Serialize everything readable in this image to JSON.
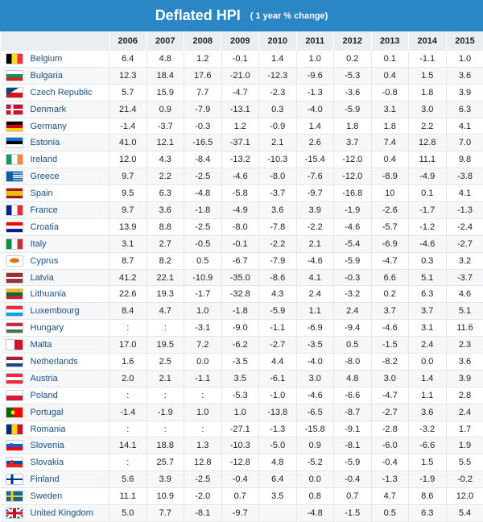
{
  "header": {
    "title": "Deflated HPI",
    "subtitle": "( 1 year % change)"
  },
  "columns": [
    "",
    "2006",
    "2007",
    "2008",
    "2009",
    "2010",
    "2011",
    "2012",
    "2013",
    "2014",
    "2015"
  ],
  "rows": [
    {
      "country": "Belgium",
      "flag": "belgium-flag-icon",
      "values": [
        "6.4",
        "4.8",
        "1.2",
        "-0.1",
        "1.4",
        "1.0",
        "0.2",
        "0.1",
        "-1.1",
        "1.0"
      ]
    },
    {
      "country": "Bulgaria",
      "flag": "bulgaria-flag-icon",
      "values": [
        "12.3",
        "18.4",
        "17.6",
        "-21.0",
        "-12.3",
        "-9.6",
        "-5.3",
        "0.4",
        "1.5",
        "3.6"
      ]
    },
    {
      "country": "Czech Republic",
      "flag": "czech-republic-flag-icon",
      "values": [
        "5.7",
        "15.9",
        "7.7",
        "-4.7",
        "-2.3",
        "-1.3",
        "-3.6",
        "-0.8",
        "1.8",
        "3.9"
      ]
    },
    {
      "country": "Denmark",
      "flag": "denmark-flag-icon",
      "values": [
        "21.4",
        "0.9",
        "-7.9",
        "-13.1",
        "0.3",
        "-4.0",
        "-5.9",
        "3.1",
        "3.0",
        "6.3"
      ]
    },
    {
      "country": "Germany",
      "flag": "germany-flag-icon",
      "values": [
        "-1.4",
        "-3.7",
        "-0.3",
        "1.2",
        "-0.9",
        "1.4",
        "1.8",
        "1.8",
        "2.2",
        "4.1"
      ]
    },
    {
      "country": "Estonia",
      "flag": "estonia-flag-icon",
      "values": [
        "41.0",
        "12.1",
        "-16.5",
        "-37.1",
        "2.1",
        "2.6",
        "3.7",
        "7.4",
        "12.8",
        "7.0"
      ]
    },
    {
      "country": "Ireland",
      "flag": "ireland-flag-icon",
      "values": [
        "12.0",
        "4.3",
        "-8.4",
        "-13.2",
        "-10.3",
        "-15.4",
        "-12.0",
        "0.4",
        "11.1",
        "9.8"
      ]
    },
    {
      "country": "Greece",
      "flag": "greece-flag-icon",
      "values": [
        "9.7",
        "2.2",
        "-2.5",
        "-4.6",
        "-8.0",
        "-7.6",
        "-12.0",
        "-8.9",
        "-4.9",
        "-3.8"
      ]
    },
    {
      "country": "Spain",
      "flag": "spain-flag-icon",
      "values": [
        "9.5",
        "6.3",
        "-4.8",
        "-5.8",
        "-3.7",
        "-9.7",
        "-16.8",
        "10",
        "0.1",
        "4.1"
      ]
    },
    {
      "country": "France",
      "flag": "france-flag-icon",
      "values": [
        "9.7",
        "3.6",
        "-1.8",
        "-4.9",
        "3.6",
        "3.9",
        "-1.9",
        "-2.6",
        "-1.7",
        "-1.3"
      ]
    },
    {
      "country": "Croatia",
      "flag": "croatia-flag-icon",
      "values": [
        "13.9",
        "8.8",
        "-2.5",
        "-8.0",
        "-7.8",
        "-2.2",
        "-4.6",
        "-5.7",
        "-1.2",
        "-2.4"
      ]
    },
    {
      "country": "Italy",
      "flag": "italy-flag-icon",
      "values": [
        "3.1",
        "2.7",
        "-0.5",
        "-0.1",
        "-2.2",
        "2.1",
        "-5.4",
        "-6.9",
        "-4.6",
        "-2.7"
      ]
    },
    {
      "country": "Cyprus",
      "flag": "cyprus-flag-icon",
      "values": [
        "8.7",
        "8.2",
        "0.5",
        "-6.7",
        "-7.9",
        "-4.6",
        "-5.9",
        "-4.7",
        "0.3",
        "3.2"
      ]
    },
    {
      "country": "Latvia",
      "flag": "latvia-flag-icon",
      "values": [
        "41.2",
        "22.1",
        "-10.9",
        "-35.0",
        "-8.6",
        "4.1",
        "-0.3",
        "6.6",
        "5.1",
        "-3.7"
      ]
    },
    {
      "country": "Lithuania",
      "flag": "lithuania-flag-icon",
      "values": [
        "22.6",
        "19.3",
        "-1.7",
        "-32.8",
        "4.3",
        "2.4",
        "-3.2",
        "0.2",
        "6.3",
        "4.6"
      ]
    },
    {
      "country": "Luxembourg",
      "flag": "luxembourg-flag-icon",
      "values": [
        "8.4",
        "4.7",
        "1.0",
        "-1.8",
        "-5.9",
        "1.1",
        "2.4",
        "3.7",
        "3.7",
        "5.1"
      ]
    },
    {
      "country": "Hungary",
      "flag": "hungary-flag-icon",
      "values": [
        ":",
        ":",
        "-3.1",
        "-9.0",
        "-1.1",
        "-6.9",
        "-9.4",
        "-4.6",
        "3.1",
        "11.6"
      ]
    },
    {
      "country": "Malta",
      "flag": "malta-flag-icon",
      "values": [
        "17.0",
        "19.5",
        "7.2",
        "-6.2",
        "-2.7",
        "-3.5",
        "0.5",
        "-1.5",
        "2.4",
        "2.3"
      ]
    },
    {
      "country": "Netherlands",
      "flag": "netherlands-flag-icon",
      "values": [
        "1.6",
        "2.5",
        "0.0",
        "-3.5",
        "4.4",
        "-4.0",
        "-8.0",
        "-8.2",
        "0.0",
        "3.6"
      ]
    },
    {
      "country": "Austria",
      "flag": "austria-flag-icon",
      "values": [
        "2.0",
        "2.1",
        "-1.1",
        "3.5",
        "-6.1",
        "3.0",
        "4.8",
        "3.0",
        "1.4",
        "3.9"
      ]
    },
    {
      "country": "Poland",
      "flag": "poland-flag-icon",
      "values": [
        ":",
        ":",
        ":",
        "-5.3",
        "-1.0",
        "-4.6",
        "-6.6",
        "-4.7",
        "1.1",
        "2.8"
      ]
    },
    {
      "country": "Portugal",
      "flag": "portugal-flag-icon",
      "values": [
        "-1.4",
        "-1.9",
        "1.0",
        "1.0",
        "-13.8",
        "-6.5",
        "-8.7",
        "-2.7",
        "3.6",
        "2.4"
      ]
    },
    {
      "country": "Romania",
      "flag": "romania-flag-icon",
      "values": [
        ":",
        ":",
        ":",
        "-27.1",
        "-1.3",
        "-15.8",
        "-9.1",
        "-2.8",
        "-3.2",
        "1.7"
      ]
    },
    {
      "country": "Slovenia",
      "flag": "slovenia-flag-icon",
      "values": [
        "14.1",
        "18.8",
        "1.3",
        "-10.3",
        "-5.0",
        "0.9",
        "-8.1",
        "-6.0",
        "-6.6",
        "1.9"
      ]
    },
    {
      "country": "Slovakia",
      "flag": "slovakia-flag-icon",
      "values": [
        ":",
        "25.7",
        "12.8",
        "-12.8",
        "4.8",
        "-5.2",
        "-5.9",
        "-0.4",
        "1.5",
        "5.5"
      ]
    },
    {
      "country": "Finland",
      "flag": "finland-flag-icon",
      "values": [
        "5.6",
        "3.9",
        "-2.5",
        "-0.4",
        "6.4",
        "0.0",
        "-0.4",
        "-1.3",
        "-1.9",
        "-0.2"
      ]
    },
    {
      "country": "Sweden",
      "flag": "sweden-flag-icon",
      "values": [
        "11.1",
        "10.9",
        "-2.0",
        "0.7",
        "3.5",
        "0.8",
        "0.7",
        "4.7",
        "8.6",
        "12.0"
      ]
    },
    {
      "country": "United Kingdom",
      "flag": "united-kingdom-flag-icon",
      "values": [
        "5.0",
        "7.7",
        "-8.1",
        "-9.7",
        "",
        "-4.8",
        "-1.5",
        "0.5",
        "6.3",
        "5.4"
      ]
    }
  ],
  "colors": {
    "title_bar": "#2b86c5",
    "country_text": "#1a4f8b",
    "header_bg": "#e9eef2"
  }
}
